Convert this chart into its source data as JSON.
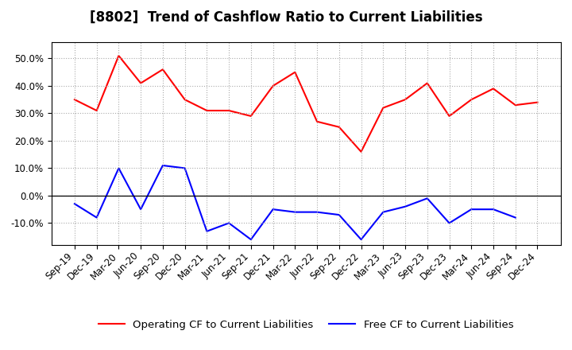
{
  "title": "[8802]  Trend of Cashflow Ratio to Current Liabilities",
  "x_labels": [
    "Sep-19",
    "Dec-19",
    "Mar-20",
    "Jun-20",
    "Sep-20",
    "Dec-20",
    "Mar-21",
    "Jun-21",
    "Sep-21",
    "Dec-21",
    "Mar-22",
    "Jun-22",
    "Sep-22",
    "Dec-22",
    "Mar-23",
    "Jun-23",
    "Sep-23",
    "Dec-23",
    "Mar-24",
    "Jun-24",
    "Sep-24",
    "Dec-24"
  ],
  "operating_cf": [
    0.35,
    0.31,
    0.51,
    0.41,
    0.46,
    0.35,
    0.31,
    0.31,
    0.29,
    0.4,
    0.45,
    0.27,
    0.25,
    0.16,
    0.32,
    0.35,
    0.41,
    0.29,
    0.35,
    0.39,
    0.33,
    0.34
  ],
  "free_cf": [
    -0.03,
    -0.08,
    0.1,
    -0.05,
    0.11,
    0.1,
    -0.13,
    -0.1,
    -0.16,
    -0.05,
    -0.06,
    -0.06,
    -0.07,
    -0.16,
    -0.06,
    -0.04,
    -0.01,
    -0.1,
    -0.05,
    -0.05,
    -0.08,
    null
  ],
  "operating_color": "#ff0000",
  "free_color": "#0000ff",
  "ylim": [
    -0.18,
    0.56
  ],
  "yticks": [
    -0.1,
    0.0,
    0.1,
    0.2,
    0.3,
    0.4,
    0.5
  ],
  "background_color": "#ffffff",
  "grid_color": "#aaaaaa",
  "legend_operating": "Operating CF to Current Liabilities",
  "legend_free": "Free CF to Current Liabilities",
  "title_fontsize": 12,
  "axis_fontsize": 8.5,
  "legend_fontsize": 9.5
}
